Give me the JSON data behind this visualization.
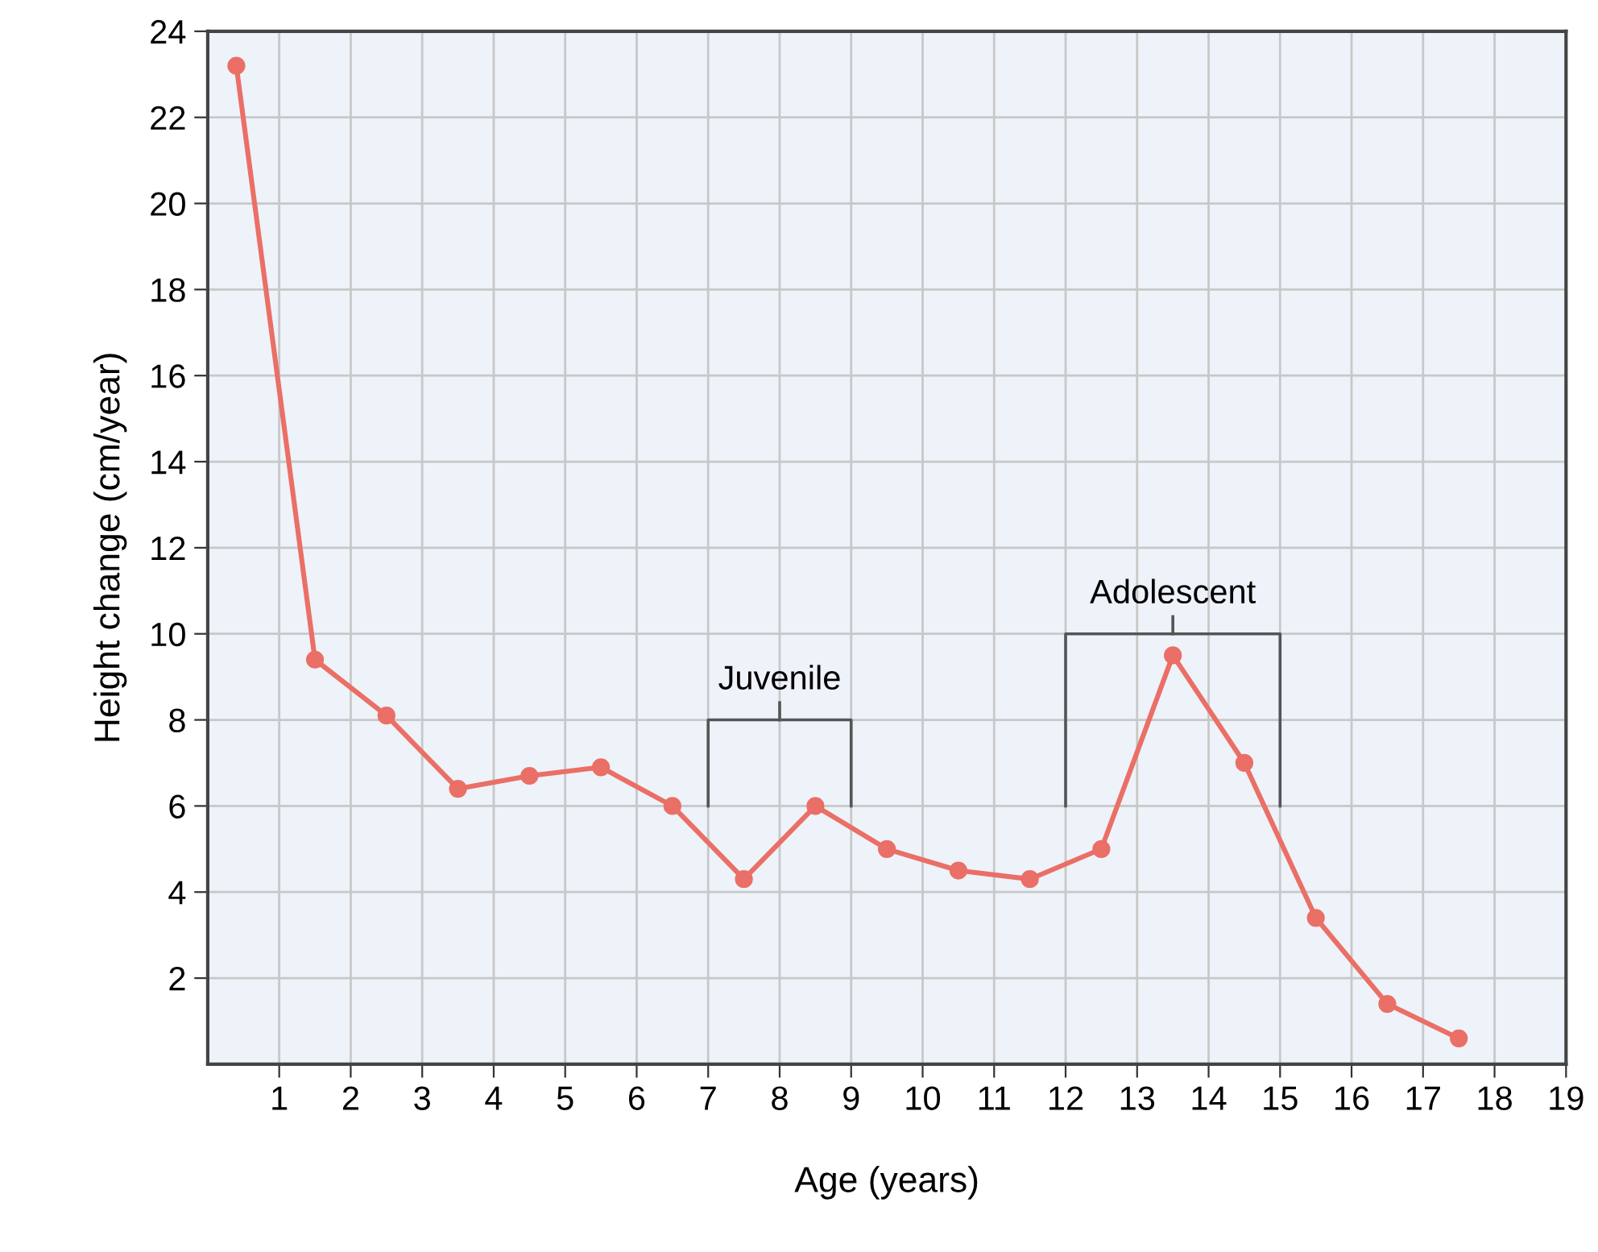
{
  "chart_data": {
    "type": "line",
    "xlabel": "Age (years)",
    "ylabel": "Height change (cm/year)",
    "x": [
      0.4,
      1.5,
      2.5,
      3.5,
      4.5,
      5.5,
      6.5,
      7.5,
      8.5,
      9.5,
      10.5,
      11.5,
      12.5,
      13.5,
      14.5,
      15.5,
      16.5,
      17.5
    ],
    "series": [
      {
        "color": "#ea6f66",
        "values": [
          23.2,
          9.4,
          8.1,
          6.4,
          6.7,
          6.9,
          6.0,
          4.3,
          6.0,
          5.0,
          4.5,
          4.3,
          5.0,
          9.5,
          7.0,
          3.4,
          1.4,
          0.6
        ]
      }
    ],
    "xlim": [
      0,
      19
    ],
    "xticks": [
      1,
      2,
      3,
      4,
      5,
      6,
      7,
      8,
      9,
      10,
      11,
      12,
      13,
      14,
      15,
      16,
      17,
      18,
      19
    ],
    "ylim": [
      0,
      24
    ],
    "yticks": [
      2,
      4,
      6,
      8,
      10,
      12,
      14,
      16,
      18,
      20,
      22,
      24
    ],
    "grid": true,
    "marker": "circle",
    "line_style": "solid",
    "annotations": [
      "Juvenile",
      "Adolescent"
    ]
  }
}
